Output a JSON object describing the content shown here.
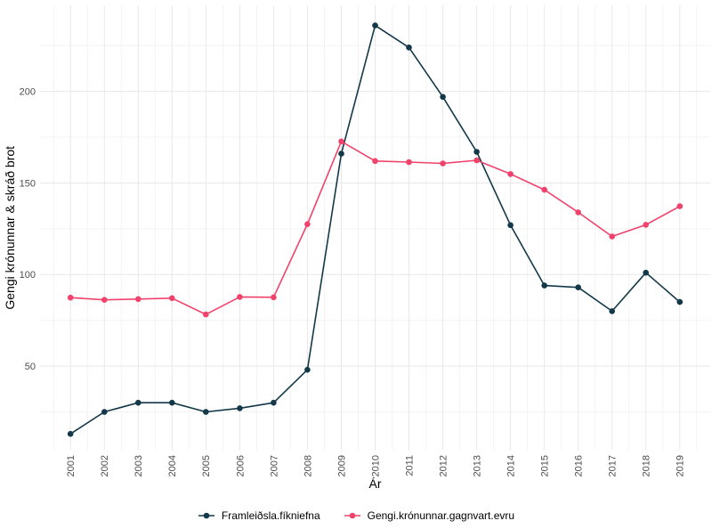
{
  "chart_data": {
    "type": "line",
    "title": "",
    "xlabel": "Ár",
    "ylabel": "Gengi krónunnar & skráð brot",
    "x": [
      2001,
      2002,
      2003,
      2004,
      2005,
      2006,
      2007,
      2008,
      2009,
      2010,
      2011,
      2012,
      2013,
      2014,
      2015,
      2016,
      2017,
      2018,
      2019
    ],
    "series": [
      {
        "name": "Framleiðsla.fíkniefna",
        "color": "#133849",
        "values": [
          13,
          25,
          30,
          30,
          25,
          27,
          30,
          48,
          166,
          236,
          224,
          197,
          167,
          127,
          94,
          93,
          80,
          101,
          85
        ]
      },
      {
        "name": "Gengi.krónunnar.gagnvart.evru",
        "color": "#F0436C",
        "values": [
          87.4,
          86.2,
          86.6,
          87.1,
          78.2,
          87.8,
          87.6,
          127.5,
          172.7,
          162.0,
          161.4,
          160.7,
          162.4,
          154.9,
          146.3,
          134.0,
          120.8,
          127.2,
          137.3
        ]
      }
    ],
    "y_ticks": [
      50,
      100,
      150,
      200
    ],
    "y_minor_ticks": [
      25,
      75,
      125,
      175,
      225
    ],
    "x_domain": [
      2000.1,
      2019.9
    ],
    "y_domain": [
      4.1,
      247.0
    ],
    "grid": true,
    "legend_position": "bottom",
    "x_tick_rotation_deg": -90
  },
  "style": {
    "background": "#FFFFFF",
    "grid_major_color": "#E8E8E8",
    "grid_minor_color": "#F3F3F3",
    "axis_text_color": "#4D4D4D",
    "axis_title_color": "#000000",
    "series1_color": "#133849",
    "series2_color": "#F0436C"
  }
}
